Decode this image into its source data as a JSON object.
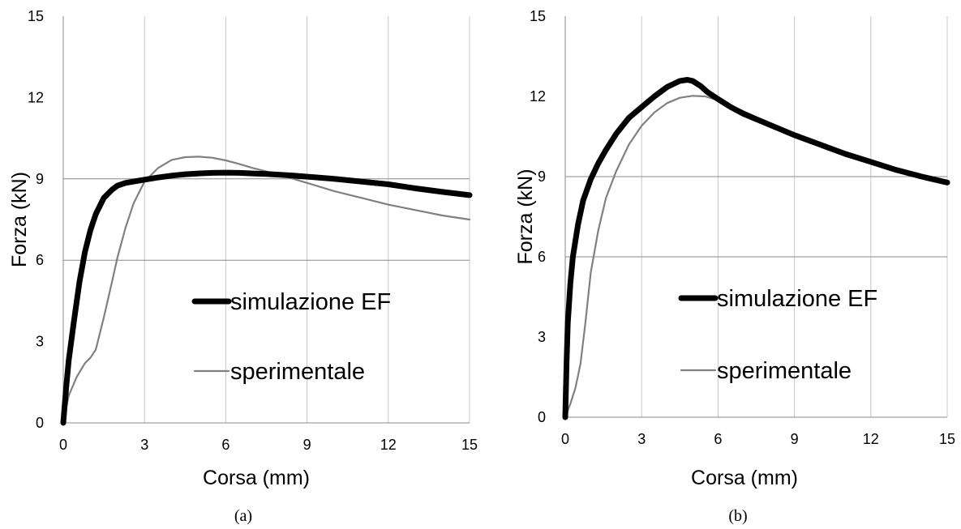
{
  "chart_data": [
    {
      "type": "line",
      "caption": "(a)",
      "xlabel": "Corsa (mm)",
      "ylabel": "Forza (kN)",
      "xlim": [
        0,
        15
      ],
      "ylim": [
        0,
        15
      ],
      "xticks": [
        "0",
        "3",
        "6",
        "9",
        "12",
        "15"
      ],
      "yticks": [
        "0",
        "3",
        "6",
        "9",
        "12",
        "15"
      ],
      "grid": "vertical lines at x ticks, horizontal lines at y ticks",
      "legend_position": "center-right",
      "series": [
        {
          "name": "simulazione EF",
          "color": "#000000",
          "style": "thick",
          "x": [
            0,
            0.1,
            0.2,
            0.4,
            0.6,
            0.8,
            1.0,
            1.2,
            1.5,
            1.8,
            2.0,
            2.3,
            2.6,
            3.0,
            3.5,
            4.0,
            4.5,
            5.0,
            5.5,
            6.0,
            6.5,
            7.0,
            7.5,
            8.0,
            8.5,
            9.0,
            10.0,
            11.0,
            12.0,
            13.0,
            14.0,
            15.0
          ],
          "y": [
            0.0,
            1.2,
            2.3,
            3.8,
            5.2,
            6.3,
            7.1,
            7.7,
            8.3,
            8.6,
            8.75,
            8.85,
            8.9,
            8.97,
            9.05,
            9.12,
            9.17,
            9.2,
            9.22,
            9.23,
            9.22,
            9.2,
            9.18,
            9.15,
            9.12,
            9.08,
            9.0,
            8.9,
            8.8,
            8.65,
            8.52,
            8.4
          ]
        },
        {
          "name": "sperimentale",
          "color": "#808080",
          "style": "thin",
          "x": [
            0,
            0.2,
            0.5,
            0.8,
            1.0,
            1.2,
            1.5,
            1.8,
            2.0,
            2.3,
            2.6,
            3.0,
            3.5,
            4.0,
            4.5,
            5.0,
            5.5,
            6.0,
            6.5,
            7.0,
            8.0,
            9.0,
            10.0,
            11.0,
            12.0,
            13.0,
            14.0,
            15.0
          ],
          "y": [
            0.0,
            1.0,
            1.7,
            2.2,
            2.4,
            2.7,
            3.9,
            5.2,
            6.1,
            7.2,
            8.1,
            8.9,
            9.4,
            9.7,
            9.8,
            9.82,
            9.78,
            9.68,
            9.55,
            9.4,
            9.15,
            8.85,
            8.55,
            8.3,
            8.05,
            7.85,
            7.65,
            7.5
          ]
        }
      ]
    },
    {
      "type": "line",
      "caption": "(b)",
      "xlabel": "Corsa (mm)",
      "ylabel": "Forza (kN)",
      "xlim": [
        0,
        15
      ],
      "ylim": [
        0,
        15
      ],
      "xticks": [
        "0",
        "3",
        "6",
        "9",
        "12",
        "15"
      ],
      "yticks": [
        "0",
        "3",
        "6",
        "9",
        "12",
        "15"
      ],
      "grid": "vertical lines at x ticks, horizontal lines at y ticks",
      "legend_position": "center-right",
      "series": [
        {
          "name": "simulazione EF",
          "color": "#000000",
          "style": "thick",
          "x": [
            0,
            0.05,
            0.1,
            0.2,
            0.3,
            0.5,
            0.7,
            1.0,
            1.3,
            1.6,
            2.0,
            2.5,
            3.0,
            3.5,
            4.0,
            4.5,
            4.8,
            5.0,
            5.3,
            5.6,
            6.0,
            6.5,
            7.0,
            8.0,
            9.0,
            10.0,
            11.0,
            12.0,
            13.0,
            14.0,
            15.0
          ],
          "y": [
            0.0,
            2.0,
            3.5,
            5.0,
            6.0,
            7.2,
            8.1,
            8.9,
            9.5,
            10.0,
            10.6,
            11.2,
            11.6,
            12.0,
            12.35,
            12.58,
            12.62,
            12.58,
            12.4,
            12.15,
            11.9,
            11.6,
            11.35,
            10.95,
            10.55,
            10.2,
            9.85,
            9.55,
            9.25,
            9.0,
            8.78
          ]
        },
        {
          "name": "sperimentale",
          "color": "#808080",
          "style": "thin",
          "x": [
            0,
            0.2,
            0.4,
            0.6,
            0.8,
            1.0,
            1.3,
            1.6,
            2.0,
            2.5,
            3.0,
            3.5,
            4.0,
            4.5,
            5.0,
            5.5,
            6.0,
            6.5,
            7.0,
            8.0,
            9.0,
            10.0,
            11.0,
            12.0,
            13.0,
            14.0,
            15.0
          ],
          "y": [
            0.0,
            0.5,
            1.1,
            2.0,
            3.6,
            5.4,
            7.0,
            8.2,
            9.2,
            10.2,
            10.9,
            11.4,
            11.75,
            11.95,
            12.02,
            12.0,
            11.85,
            11.65,
            11.45,
            11.0,
            10.6,
            10.25,
            9.9,
            9.58,
            9.28,
            9.0,
            8.72
          ]
        }
      ]
    }
  ]
}
